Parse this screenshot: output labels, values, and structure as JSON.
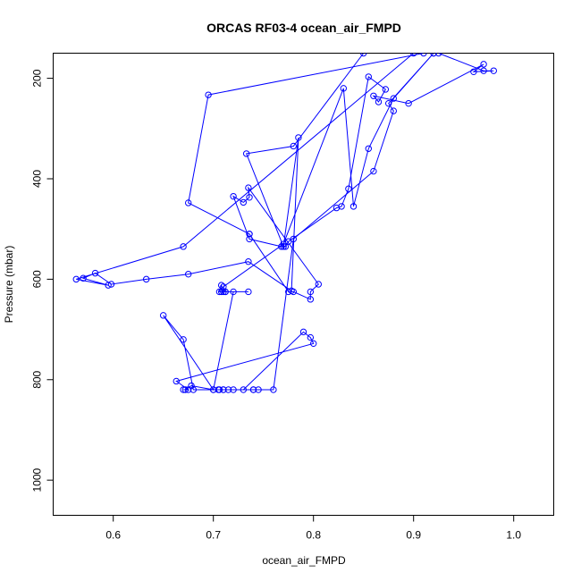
{
  "chart_data": {
    "type": "line",
    "title": "ORCAS RF03-4 ocean_air_FMPD",
    "xlabel": "ocean_air_FMPD",
    "ylabel": "Pressure (mbar)",
    "xlim": [
      0.54,
      1.04
    ],
    "ylim": [
      1070,
      150
    ],
    "y_reversed": true,
    "x_ticks": [
      0.6,
      0.7,
      0.8,
      0.9,
      1.0
    ],
    "x_tick_labels": [
      "0.6",
      "0.7",
      "0.8",
      "0.9",
      "1.0"
    ],
    "y_ticks": [
      200,
      400,
      600,
      800,
      1000
    ],
    "y_tick_labels": [
      "200",
      "400",
      "600",
      "800",
      "1000"
    ],
    "grid": false,
    "color": "#0000ff",
    "series": [
      {
        "x": [
          0.925,
          0.97,
          0.98,
          0.96,
          0.97,
          0.895,
          0.86,
          0.865,
          0.872,
          0.855,
          0.835,
          0.828,
          0.823,
          0.775,
          0.772,
          0.768,
          0.736,
          0.72,
          0.73,
          0.736,
          0.735,
          0.805,
          0.797,
          0.797,
          0.78,
          0.775,
          0.736,
          0.736,
          0.675,
          0.695,
          0.91
        ],
        "y": [
          150,
          185,
          185,
          187,
          172,
          250,
          235,
          247,
          222,
          197,
          420,
          455,
          458,
          525,
          535,
          535,
          520,
          435,
          447,
          437,
          418,
          610,
          625,
          640,
          625,
          625,
          510,
          510,
          448,
          233,
          150
        ]
      },
      {
        "x": [
          0.92,
          0.88,
          0.855,
          0.84,
          0.83,
          0.77,
          0.71,
          0.712,
          0.708,
          0.706,
          0.708,
          0.71,
          0.712,
          0.735,
          0.72,
          0.7,
          0.65,
          0.67,
          0.68,
          0.71,
          0.72,
          0.74,
          0.7,
          0.678,
          0.672,
          0.67,
          0.675,
          0.663,
          0.8,
          0.797,
          0.79,
          0.73,
          0.71,
          0.705,
          0.706,
          0.715,
          0.74,
          0.745,
          0.76,
          0.78,
          0.86,
          0.88,
          0.875,
          0.92
        ],
        "y": [
          150,
          240,
          340,
          455,
          220,
          530,
          615,
          625,
          625,
          625,
          612,
          625,
          625,
          625,
          625,
          820,
          672,
          720,
          820,
          820,
          820,
          820,
          820,
          812,
          820,
          820,
          820,
          803,
          728,
          716,
          705,
          820,
          820,
          820,
          820,
          820,
          820,
          820,
          820,
          520,
          385,
          265,
          250,
          150
        ]
      },
      {
        "x": [
          0.9,
          0.67,
          0.563,
          0.595,
          0.57,
          0.582,
          0.598,
          0.633,
          0.675,
          0.735,
          0.778,
          0.785,
          0.77,
          0.733,
          0.78,
          0.85
        ],
        "y": [
          150,
          535,
          600,
          612,
          598,
          588,
          610,
          600,
          590,
          565,
          623,
          318,
          535,
          350,
          335,
          150
        ]
      }
    ]
  }
}
